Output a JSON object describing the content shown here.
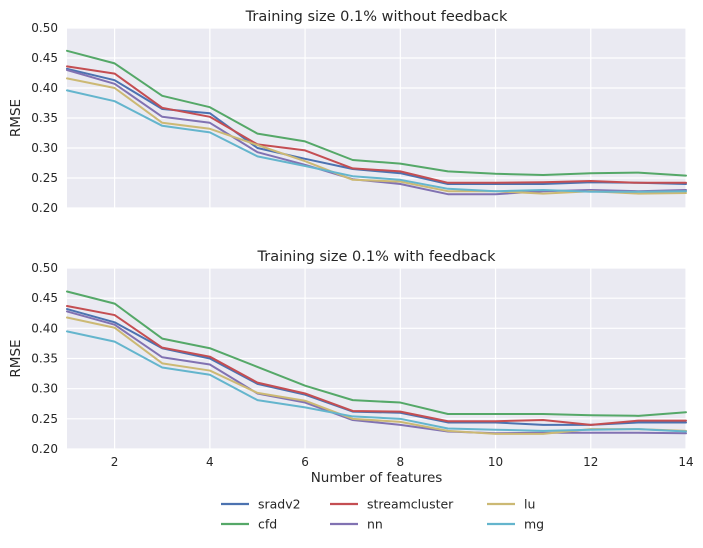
{
  "chart_data": [
    {
      "type": "line",
      "title": "Training size 0.1% without feedback",
      "ylabel": "RMSE",
      "xlabel": "",
      "xlim": [
        1,
        14
      ],
      "ylim": [
        0.2,
        0.5
      ],
      "x_ticks": [
        "2",
        "4",
        "6",
        "8",
        "10",
        "12",
        "14"
      ],
      "y_ticks": [
        "0.20",
        "0.25",
        "0.30",
        "0.35",
        "0.40",
        "0.45",
        "0.50"
      ],
      "show_x_tick_labels": false,
      "grid": true,
      "x": [
        1,
        2,
        3,
        4,
        5,
        6,
        7,
        8,
        9,
        10,
        11,
        12,
        13,
        14
      ],
      "series": [
        {
          "name": "sradv2",
          "color": "#4c72b0",
          "values": [
            0.432,
            0.413,
            0.365,
            0.358,
            0.3,
            0.282,
            0.265,
            0.258,
            0.24,
            0.24,
            0.24,
            0.243,
            0.242,
            0.24
          ]
        },
        {
          "name": "cfd",
          "color": "#55a868",
          "values": [
            0.462,
            0.441,
            0.387,
            0.368,
            0.324,
            0.311,
            0.28,
            0.274,
            0.261,
            0.257,
            0.255,
            0.258,
            0.259,
            0.254
          ]
        },
        {
          "name": "streamcluster",
          "color": "#c44e52",
          "values": [
            0.436,
            0.424,
            0.367,
            0.352,
            0.306,
            0.296,
            0.266,
            0.261,
            0.242,
            0.242,
            0.243,
            0.245,
            0.242,
            0.242
          ]
        },
        {
          "name": "nn",
          "color": "#8172b2",
          "values": [
            0.43,
            0.407,
            0.352,
            0.342,
            0.293,
            0.272,
            0.248,
            0.24,
            0.223,
            0.223,
            0.228,
            0.23,
            0.228,
            0.23
          ]
        },
        {
          "name": "lu",
          "color": "#ccb974",
          "values": [
            0.416,
            0.4,
            0.342,
            0.332,
            0.305,
            0.278,
            0.247,
            0.244,
            0.228,
            0.228,
            0.224,
            0.228,
            0.224,
            0.225
          ]
        },
        {
          "name": "mg",
          "color": "#64b5cd",
          "values": [
            0.396,
            0.378,
            0.337,
            0.326,
            0.286,
            0.27,
            0.253,
            0.247,
            0.232,
            0.228,
            0.23,
            0.227,
            0.227,
            0.228
          ]
        }
      ]
    },
    {
      "type": "line",
      "title": "Training size 0.1% with feedback",
      "ylabel": "RMSE",
      "xlabel": "Number of features",
      "xlim": [
        1,
        14
      ],
      "ylim": [
        0.2,
        0.5
      ],
      "x_ticks": [
        "2",
        "4",
        "6",
        "8",
        "10",
        "12",
        "14"
      ],
      "y_ticks": [
        "0.20",
        "0.25",
        "0.30",
        "0.35",
        "0.40",
        "0.45",
        "0.50"
      ],
      "show_x_tick_labels": true,
      "grid": true,
      "x": [
        1,
        2,
        3,
        4,
        5,
        6,
        7,
        8,
        9,
        10,
        11,
        12,
        13,
        14
      ],
      "series": [
        {
          "name": "sradv2",
          "color": "#4c72b0",
          "values": [
            0.432,
            0.41,
            0.367,
            0.35,
            0.308,
            0.29,
            0.262,
            0.26,
            0.244,
            0.244,
            0.24,
            0.24,
            0.244,
            0.244
          ]
        },
        {
          "name": "cfd",
          "color": "#55a868",
          "values": [
            0.461,
            0.441,
            0.383,
            0.367,
            0.336,
            0.305,
            0.281,
            0.277,
            0.258,
            0.258,
            0.258,
            0.256,
            0.255,
            0.261
          ]
        },
        {
          "name": "streamcluster",
          "color": "#c44e52",
          "values": [
            0.437,
            0.422,
            0.368,
            0.353,
            0.31,
            0.292,
            0.263,
            0.262,
            0.246,
            0.246,
            0.248,
            0.24,
            0.247,
            0.247
          ]
        },
        {
          "name": "nn",
          "color": "#8172b2",
          "values": [
            0.428,
            0.406,
            0.352,
            0.34,
            0.292,
            0.277,
            0.248,
            0.24,
            0.229,
            0.226,
            0.227,
            0.227,
            0.227,
            0.226
          ]
        },
        {
          "name": "lu",
          "color": "#ccb974",
          "values": [
            0.418,
            0.401,
            0.342,
            0.33,
            0.293,
            0.28,
            0.25,
            0.245,
            0.23,
            0.225,
            0.225,
            0.233,
            0.233,
            0.23
          ]
        },
        {
          "name": "mg",
          "color": "#64b5cd",
          "values": [
            0.395,
            0.378,
            0.335,
            0.323,
            0.281,
            0.269,
            0.254,
            0.25,
            0.234,
            0.232,
            0.23,
            0.232,
            0.233,
            0.229
          ]
        }
      ]
    }
  ],
  "legend": {
    "placement": "bottom-center",
    "columns": 3,
    "entries": [
      "sradv2",
      "cfd",
      "streamcluster",
      "nn",
      "lu",
      "mg"
    ]
  }
}
